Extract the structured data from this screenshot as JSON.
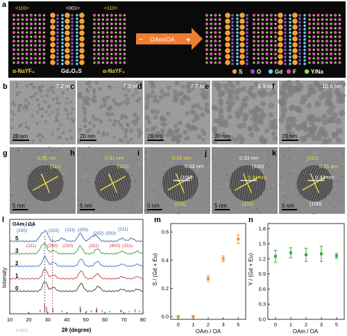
{
  "panel_a": {
    "letter": "a",
    "left_block": {
      "dir1": "<110>",
      "dir2": "<001>",
      "dir3": "<110>",
      "phase1": "α-NaYF₄",
      "phase2": "Gd₂O₂S",
      "phase3": "α-NaYF₄"
    },
    "arrow": {
      "minus": "−",
      "label": "OAm/OA",
      "plus": "+"
    },
    "legend": [
      {
        "symbol": "S",
        "color": "#f2a23a"
      },
      {
        "symbol": "O",
        "color": "#7b5cc7"
      },
      {
        "symbol": "Gd",
        "color": "#6fd0f0"
      },
      {
        "symbol": "F",
        "color": "#d24fa8"
      },
      {
        "symbol": "Y/Na",
        "color": "#9fdc4a"
      }
    ]
  },
  "tem_row": [
    {
      "letter": "b",
      "size": "7.2 nm",
      "scale": "20 nm"
    },
    {
      "letter": "c",
      "size": "7.3 nm",
      "scale": "20 nm"
    },
    {
      "letter": "d",
      "size": "7.7 nm",
      "scale": "20 nm"
    },
    {
      "letter": "e",
      "size": "9.9 nm",
      "scale": "20 nm"
    },
    {
      "letter": "f",
      "size": "10.6 nm",
      "scale": "20 nm"
    }
  ],
  "hrtem_row": [
    {
      "letter": "g",
      "scale": "5 nm",
      "labels": [
        "0.31 nm",
        "(111)"
      ]
    },
    {
      "letter": "h",
      "scale": "5 nm",
      "labels": [
        "0.31 nm",
        "(111)"
      ]
    },
    {
      "letter": "i",
      "scale": "5 nm",
      "labels": [
        "0.31 nm",
        "0.33 nm",
        "(100)",
        "(111)"
      ]
    },
    {
      "letter": "j",
      "scale": "5 nm",
      "labels": [
        "0.33 nm",
        "(100)",
        "0.31 nm",
        "(111)"
      ]
    },
    {
      "letter": "k",
      "scale": "5 nm",
      "labels": [
        "(111)",
        "0.31 nm",
        "0.33 nm",
        "(100)"
      ]
    }
  ],
  "chart_data": [
    {
      "type": "line",
      "panel": "l",
      "xlabel": "2θ (degree)",
      "ylabel": "Intensity",
      "xlim": [
        10,
        80
      ],
      "xticks": [
        10,
        20,
        30,
        40,
        50,
        60,
        70,
        80
      ],
      "series_label": "OAm / OA",
      "series": [
        {
          "name": "5",
          "color": "#2f5fa8",
          "peaks": [
            [
              26.5,
              0.6
            ],
            [
              29,
              1.0
            ],
            [
              37.5,
              0.3
            ],
            [
              47,
              0.8
            ],
            [
              53,
              0.4
            ],
            [
              55.5,
              0.55
            ],
            [
              69,
              0.3
            ],
            [
              74,
              0.3
            ]
          ]
        },
        {
          "name": "3",
          "color": "#2e9a3f",
          "peaks": [
            [
              26.5,
              0.5
            ],
            [
              28.5,
              0.9
            ],
            [
              33,
              0.35
            ],
            [
              47,
              0.8
            ],
            [
              56,
              0.5
            ],
            [
              69,
              0.25
            ],
            [
              77,
              0.25
            ]
          ]
        },
        {
          "name": "2",
          "color": "#3a6fc4",
          "peaks": [
            [
              28.5,
              1.0
            ],
            [
              33,
              0.4
            ],
            [
              47.5,
              0.75
            ],
            [
              56,
              0.5
            ],
            [
              69,
              0.2
            ],
            [
              77,
              0.2
            ]
          ]
        },
        {
          "name": "1",
          "color": "#c03a3a",
          "peaks": [
            [
              28.5,
              1.0
            ],
            [
              33,
              0.4
            ],
            [
              47.5,
              0.8
            ],
            [
              56,
              0.5
            ],
            [
              69,
              0.2
            ],
            [
              77,
              0.2
            ]
          ]
        },
        {
          "name": "0",
          "color": "#333333",
          "peaks": [
            [
              28.5,
              1.0
            ],
            [
              33,
              0.4
            ],
            [
              47.5,
              0.8
            ],
            [
              56.5,
              0.5
            ],
            [
              69,
              0.2
            ],
            [
              77,
              0.2
            ]
          ]
        }
      ],
      "annotations_blue": [
        "(100)",
        "(101)",
        "(102)",
        "(111)",
        "(200)",
        "(202)",
        "(203)",
        "(211)"
      ],
      "annotations_red": [
        "(111)",
        "(200)",
        "(220)",
        "(311)",
        "(400)",
        "(331)"
      ],
      "ref_bars_red": [
        28.3,
        32.8,
        47.0,
        55.8,
        58.5,
        68.8,
        75.9,
        78.2
      ],
      "ref_bars_blue": [
        26.0,
        29.4,
        37.6,
        47.2,
        50.4,
        52.8,
        55.4,
        62.6,
        68.2,
        72.8
      ]
    },
    {
      "type": "scatter",
      "panel": "m",
      "xlabel": "OAm / OA",
      "ylabel": "S / (Gd + Eu)",
      "categories": [
        "0",
        "1",
        "2",
        "3",
        "5"
      ],
      "values": [
        0.0,
        0.0,
        0.27,
        0.41,
        0.55
      ],
      "errors": [
        0.005,
        0.005,
        0.02,
        0.02,
        0.03
      ],
      "ylim": [
        -0.02,
        0.66
      ],
      "yticks": [
        0.0,
        0.2,
        0.4,
        0.6
      ],
      "color": "#e89a3a"
    },
    {
      "type": "scatter",
      "panel": "n",
      "xlabel": "OAm / OA",
      "ylabel": "Y / (Gd + Eu)",
      "categories": [
        "0",
        "1",
        "2",
        "3",
        "5"
      ],
      "values": [
        1.25,
        1.32,
        1.28,
        1.3,
        1.26
      ],
      "errors": [
        0.12,
        0.1,
        0.13,
        0.15,
        0.05
      ],
      "ylim": [
        0.0,
        1.9
      ],
      "yticks": [
        0.0,
        0.3,
        0.6,
        0.9,
        1.2,
        1.5,
        1.8
      ],
      "color": "#3aa84a"
    }
  ],
  "watermark": "X-MOL"
}
